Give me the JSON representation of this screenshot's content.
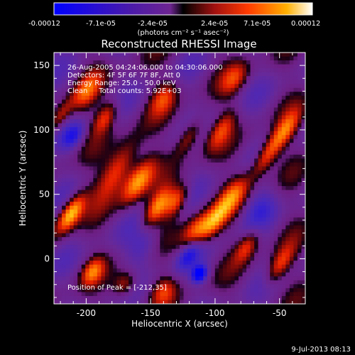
{
  "chart_data": {
    "type": "heatmap",
    "title": "Reconstructed RHESSI Image",
    "xlabel": "Heliocentric X (arcsec)",
    "ylabel": "Heliocentric Y (arcsec)",
    "xlim": [
      -225,
      -30
    ],
    "ylim": [
      -35,
      160
    ],
    "xticks": [
      -200,
      -150,
      -100,
      -50
    ],
    "yticks": [
      0,
      50,
      100,
      150
    ],
    "colorbar": {
      "ticks": [
        "-0.00012",
        "-7.1e-05",
        "-2.4e-05",
        "2.4e-05",
        "7.1e-05",
        "0.00012"
      ],
      "unit_label": "(photons cm⁻² s⁻¹ asec⁻²)",
      "range": [
        -0.00012,
        0.00012
      ]
    },
    "annotations": [
      "26-Aug-2005 04:24:06.000 to 04:30:06.000",
      "Detectors: 4F 5F 6F 7F 8F, Att 0",
      "Energy Range: 25.0 - 50.0 keV",
      "Clean     Total counts: 5.92E+03"
    ],
    "peak_label": "Position of Peak = [-212,35]",
    "peak": [
      -212,
      35
    ],
    "footer_date": "9-Jul-2013 08:13",
    "sources": [
      {
        "x": -212,
        "y": 35,
        "v": 1.0,
        "sx": 5,
        "sy": 12
      },
      {
        "x": -175,
        "y": 70,
        "v": 0.75,
        "sx": 7,
        "sy": 18
      },
      {
        "x": -160,
        "y": 60,
        "v": 0.85,
        "sx": 6,
        "sy": 14
      },
      {
        "x": -145,
        "y": 40,
        "v": 0.8,
        "sx": 5,
        "sy": 12
      },
      {
        "x": -130,
        "y": 45,
        "v": 0.7,
        "sx": 5,
        "sy": 10
      },
      {
        "x": -115,
        "y": 20,
        "v": 0.8,
        "sx": 6,
        "sy": 12
      },
      {
        "x": -100,
        "y": 30,
        "v": 0.65,
        "sx": 5,
        "sy": 12
      },
      {
        "x": -85,
        "y": 50,
        "v": 0.6,
        "sx": 6,
        "sy": 12
      },
      {
        "x": -60,
        "y": 80,
        "v": 0.75,
        "sx": 5,
        "sy": 14
      },
      {
        "x": -45,
        "y": 100,
        "v": 0.6,
        "sx": 5,
        "sy": 12
      },
      {
        "x": -50,
        "y": -5,
        "v": 0.6,
        "sx": 5,
        "sy": 12
      },
      {
        "x": -200,
        "y": 130,
        "v": 0.55,
        "sx": 6,
        "sy": 12
      },
      {
        "x": -185,
        "y": 110,
        "v": 0.6,
        "sx": 5,
        "sy": 10
      },
      {
        "x": -140,
        "y": 125,
        "v": 0.5,
        "sx": 6,
        "sy": 10
      },
      {
        "x": -120,
        "y": 95,
        "v": 0.55,
        "sx": 5,
        "sy": 12
      },
      {
        "x": -95,
        "y": 100,
        "v": 0.5,
        "sx": 5,
        "sy": 12
      },
      {
        "x": -85,
        "y": 140,
        "v": 0.45,
        "sx": 6,
        "sy": 10
      },
      {
        "x": -195,
        "y": -10,
        "v": 0.6,
        "sx": 5,
        "sy": 8
      },
      {
        "x": -170,
        "y": -20,
        "v": 0.55,
        "sx": 6,
        "sy": 8
      },
      {
        "x": -140,
        "y": -25,
        "v": 0.45,
        "sx": 6,
        "sy": 8
      },
      {
        "x": -75,
        "y": 10,
        "v": 0.55,
        "sx": 5,
        "sy": 10
      },
      {
        "x": -220,
        "y": 110,
        "v": 0.5,
        "sx": 4,
        "sy": 10
      },
      {
        "x": -210,
        "y": 95,
        "v": -0.5,
        "sx": 5,
        "sy": 8
      },
      {
        "x": -120,
        "y": 5,
        "v": -0.6,
        "sx": 5,
        "sy": 10
      },
      {
        "x": -112,
        "y": -12,
        "v": -0.9,
        "sx": 4,
        "sy": 5
      },
      {
        "x": -65,
        "y": 40,
        "v": -0.3,
        "sx": 8,
        "sy": 12
      },
      {
        "x": -155,
        "y": 10,
        "v": -0.35,
        "sx": 8,
        "sy": 12
      }
    ]
  }
}
